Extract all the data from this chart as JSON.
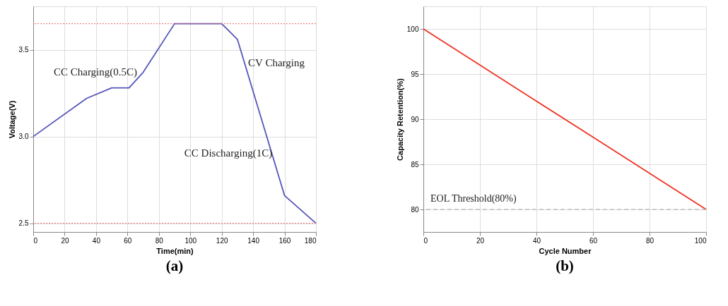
{
  "chart_data": [
    {
      "type": "line",
      "xlabel": "Time(min)",
      "ylabel": "Voltage(V)",
      "x": [
        0,
        34,
        50,
        61,
        70,
        90,
        120,
        130,
        160,
        180
      ],
      "series": [
        {
          "color": "#5555bb",
          "values": [
            3.0,
            3.22,
            3.28,
            3.28,
            3.37,
            3.65,
            3.65,
            3.56,
            2.66,
            2.5
          ]
        }
      ],
      "xlim": [
        0,
        180
      ],
      "xticks": [
        0,
        20,
        40,
        60,
        80,
        100,
        120,
        140,
        160,
        180
      ],
      "ylim": [
        2.45,
        3.75
      ],
      "yticks": [
        2.5,
        {
          "value": 3,
          "label": "3.0"
        },
        3.5
      ],
      "grid": true,
      "marker": "none",
      "line_style": "solid",
      "ref_lines": [
        {
          "axis": "y",
          "value": 3.65,
          "color": "#ee6666",
          "line_style": "dotted"
        },
        {
          "axis": "y",
          "value": 2.5,
          "color": "#ee6666",
          "line_style": "dotted"
        }
      ],
      "title": "(a)",
      "annotations": [
        "CC Charging(0.5C)",
        "CV Charging",
        "CC Discharging(1C)"
      ]
    },
    {
      "type": "line",
      "xlabel": "Cycle Number",
      "ylabel": "Capacity Retention(%)",
      "x": [
        0,
        20,
        40,
        60,
        80,
        100
      ],
      "series": [
        {
          "color": "#ee3322",
          "values": [
            100,
            96,
            92,
            88,
            84,
            80
          ]
        }
      ],
      "xlim": [
        0,
        100
      ],
      "xticks": [
        0,
        20,
        40,
        60,
        80,
        100
      ],
      "ylim": [
        77.5,
        102.5
      ],
      "yticks": [
        80,
        85,
        90,
        95,
        100
      ],
      "grid": true,
      "marker": "none",
      "line_style": "solid",
      "ref_lines": [
        {
          "axis": "y",
          "value": 80,
          "label": "EOL Threshold(80%)",
          "color": "#aaaaaa",
          "line_style": "dashed"
        }
      ],
      "title": "(b)"
    }
  ]
}
